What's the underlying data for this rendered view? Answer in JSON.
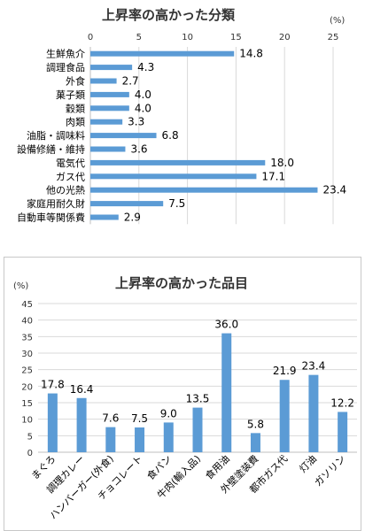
{
  "chart_data": [
    {
      "type": "bar",
      "orientation": "horizontal",
      "title": "上昇率の高かった分類",
      "unit": "(%)",
      "categories": [
        "生鮮魚介",
        "調理食品",
        "外食",
        "菓子類",
        "穀類",
        "肉類",
        "油脂・調味料",
        "設備修繕・維持",
        "電気代",
        "ガス代",
        "他の光熱",
        "家庭用耐久財",
        "自動車等関係費"
      ],
      "values": [
        14.8,
        4.3,
        2.7,
        4.0,
        4.0,
        3.3,
        6.8,
        3.6,
        18.0,
        17.1,
        23.4,
        7.5,
        2.9
      ],
      "value_labels": [
        "14.8",
        "4.3",
        "2.7",
        "4.0",
        "4.0",
        "3.3",
        "6.8",
        "3.6",
        "18.0",
        "17.1",
        "23.4",
        "7.5",
        "2.9"
      ],
      "xlim": [
        0,
        25
      ],
      "ticks": [
        0,
        5,
        10,
        15,
        20,
        25
      ],
      "tick_labels": [
        "0",
        "5",
        "10",
        "15",
        "20",
        "25"
      ],
      "grid": true,
      "bar_color": "#5b9bd5"
    },
    {
      "type": "bar",
      "orientation": "vertical",
      "title": "上昇率の高かった品目",
      "unit": "(%)",
      "categories": [
        "まぐろ",
        "調理カレー",
        "ハンバーガー(外食)",
        "チョコレート",
        "食パン",
        "牛肉(輸入品)",
        "食用油",
        "外壁塗装費",
        "都市ガス代",
        "灯油",
        "ガソリン"
      ],
      "values": [
        17.8,
        16.4,
        7.6,
        7.5,
        9.0,
        13.5,
        36.0,
        5.8,
        21.9,
        23.4,
        12.2
      ],
      "value_labels": [
        "17.8",
        "16.4",
        "7.6",
        "7.5",
        "9.0",
        "13.5",
        "36.0",
        "5.8",
        "21.9",
        "23.4",
        "12.2"
      ],
      "ylim": [
        0,
        45
      ],
      "ticks": [
        0,
        5,
        10,
        15,
        20,
        25,
        30,
        35,
        40,
        45
      ],
      "tick_labels": [
        "0",
        "5",
        "10",
        "15",
        "20",
        "25",
        "30",
        "35",
        "40",
        "45"
      ],
      "grid": true,
      "bar_color": "#5b9bd5"
    }
  ]
}
